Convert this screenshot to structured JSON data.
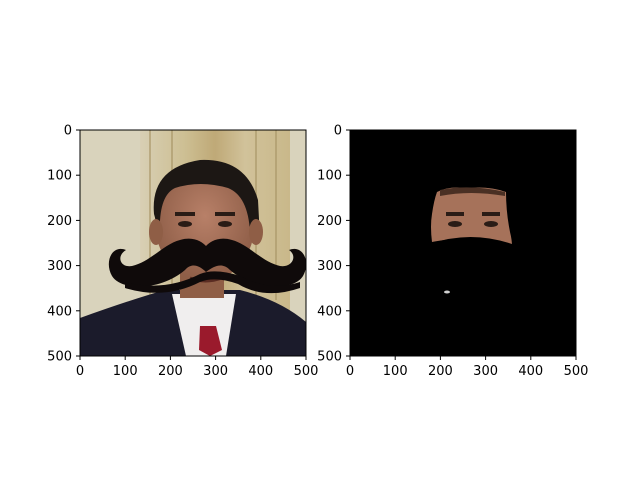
{
  "chart_data": [
    {
      "type": "image",
      "content": "photo-with-mustache",
      "xlim": [
        0,
        500
      ],
      "ylim": [
        500,
        0
      ],
      "xticks": [
        0,
        100,
        200,
        300,
        400,
        500
      ],
      "yticks": [
        0,
        100,
        200,
        300,
        400,
        500
      ],
      "xticklabels": [
        "0",
        "100",
        "200",
        "300",
        "400",
        "500"
      ],
      "yticklabels": [
        "0",
        "100",
        "200",
        "300",
        "400",
        "500"
      ],
      "grid": false
    },
    {
      "type": "image",
      "content": "masked-face",
      "xlim": [
        0,
        500
      ],
      "ylim": [
        500,
        0
      ],
      "xticks": [
        0,
        100,
        200,
        300,
        400,
        500
      ],
      "yticks": [
        0,
        100,
        200,
        300,
        400,
        500
      ],
      "xticklabels": [
        "0",
        "100",
        "200",
        "300",
        "400",
        "500"
      ],
      "yticklabels": [
        "0",
        "100",
        "200",
        "300",
        "400",
        "500"
      ],
      "grid": false
    }
  ],
  "colors": {
    "mustache": "#0f0a0a",
    "mask_background": "#000000",
    "suit": "#1b1b2b",
    "shirt": "#f0eeee",
    "tie": "#9a1a2c",
    "skin": "#a7725a",
    "hair": "#1c1714",
    "curtain": "#c8b98c"
  }
}
